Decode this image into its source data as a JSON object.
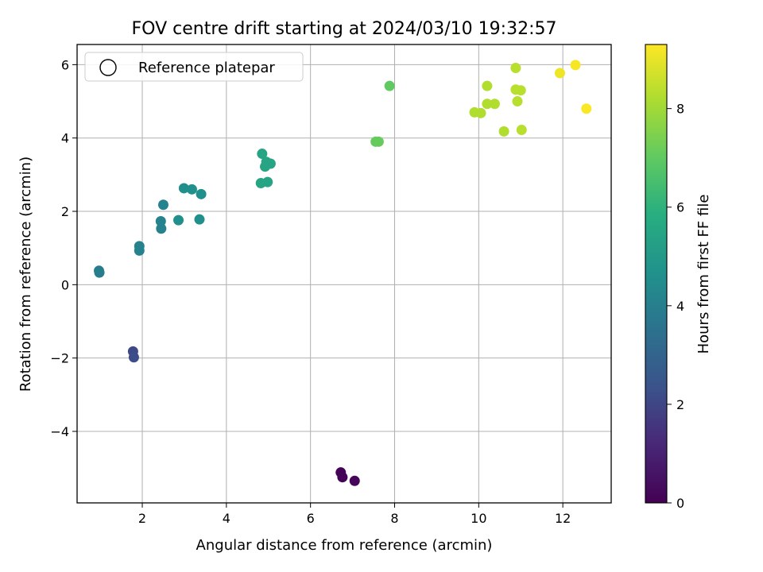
{
  "chart_data": {
    "type": "scatter",
    "title": "FOV centre drift starting at 2024/03/10 19:32:57",
    "xlabel": "Angular distance from reference (arcmin)",
    "ylabel": "Rotation from reference (arcmin)",
    "xlim": [
      0.45,
      13.15
    ],
    "ylim": [
      -5.95,
      6.55
    ],
    "xticks": [
      2,
      4,
      6,
      8,
      10,
      12
    ],
    "yticks": [
      -4,
      -2,
      0,
      2,
      4,
      6
    ],
    "grid": true,
    "legend": {
      "placement": "top-left",
      "entries": [
        "Reference platepar"
      ]
    },
    "colorbar": {
      "label": "Hours from first FF file",
      "min": 0,
      "max": 9.3,
      "ticks": [
        0,
        2,
        4,
        6,
        8
      ],
      "colormap": "viridis"
    },
    "series": [
      {
        "points": [
          {
            "x": 6.72,
            "y": -5.12,
            "c": 0.05
          },
          {
            "x": 6.76,
            "y": -5.25,
            "c": 0.1
          },
          {
            "x": 7.05,
            "y": -5.35,
            "c": 0.15
          },
          {
            "x": 1.78,
            "y": -1.82,
            "c": 2.1
          },
          {
            "x": 1.8,
            "y": -1.98,
            "c": 2.2
          },
          {
            "x": 0.97,
            "y": 0.38,
            "c": 3.9
          },
          {
            "x": 0.98,
            "y": 0.33,
            "c": 3.9
          },
          {
            "x": 1.93,
            "y": 1.05,
            "c": 4.1
          },
          {
            "x": 1.93,
            "y": 0.93,
            "c": 4.1
          },
          {
            "x": 2.44,
            "y": 1.73,
            "c": 4.1
          },
          {
            "x": 2.45,
            "y": 1.53,
            "c": 4.1
          },
          {
            "x": 2.5,
            "y": 2.18,
            "c": 4.1
          },
          {
            "x": 2.86,
            "y": 1.76,
            "c": 4.6
          },
          {
            "x": 3.36,
            "y": 1.78,
            "c": 4.6
          },
          {
            "x": 2.99,
            "y": 2.63,
            "c": 4.6
          },
          {
            "x": 3.18,
            "y": 2.6,
            "c": 4.6
          },
          {
            "x": 3.4,
            "y": 2.47,
            "c": 4.6
          },
          {
            "x": 4.85,
            "y": 3.57,
            "c": 5.4
          },
          {
            "x": 4.92,
            "y": 3.22,
            "c": 5.4
          },
          {
            "x": 4.95,
            "y": 3.35,
            "c": 5.4
          },
          {
            "x": 5.05,
            "y": 3.3,
            "c": 5.4
          },
          {
            "x": 4.82,
            "y": 2.77,
            "c": 5.4
          },
          {
            "x": 4.98,
            "y": 2.8,
            "c": 5.4
          },
          {
            "x": 7.55,
            "y": 3.9,
            "c": 7.1
          },
          {
            "x": 7.62,
            "y": 3.9,
            "c": 7.1
          },
          {
            "x": 7.88,
            "y": 5.42,
            "c": 7.0
          },
          {
            "x": 9.9,
            "y": 4.7,
            "c": 8.2
          },
          {
            "x": 10.05,
            "y": 4.68,
            "c": 8.2
          },
          {
            "x": 10.2,
            "y": 5.42,
            "c": 8.2
          },
          {
            "x": 10.2,
            "y": 4.93,
            "c": 8.2
          },
          {
            "x": 10.38,
            "y": 4.93,
            "c": 8.2
          },
          {
            "x": 10.6,
            "y": 4.18,
            "c": 8.2
          },
          {
            "x": 10.88,
            "y": 5.91,
            "c": 8.3
          },
          {
            "x": 10.88,
            "y": 5.32,
            "c": 8.3
          },
          {
            "x": 11.0,
            "y": 5.3,
            "c": 8.3
          },
          {
            "x": 10.92,
            "y": 5.0,
            "c": 8.3
          },
          {
            "x": 11.02,
            "y": 4.22,
            "c": 8.3
          },
          {
            "x": 11.93,
            "y": 5.77,
            "c": 9.1
          },
          {
            "x": 12.3,
            "y": 5.99,
            "c": 9.2
          },
          {
            "x": 12.56,
            "y": 4.8,
            "c": 9.25
          }
        ]
      }
    ]
  }
}
